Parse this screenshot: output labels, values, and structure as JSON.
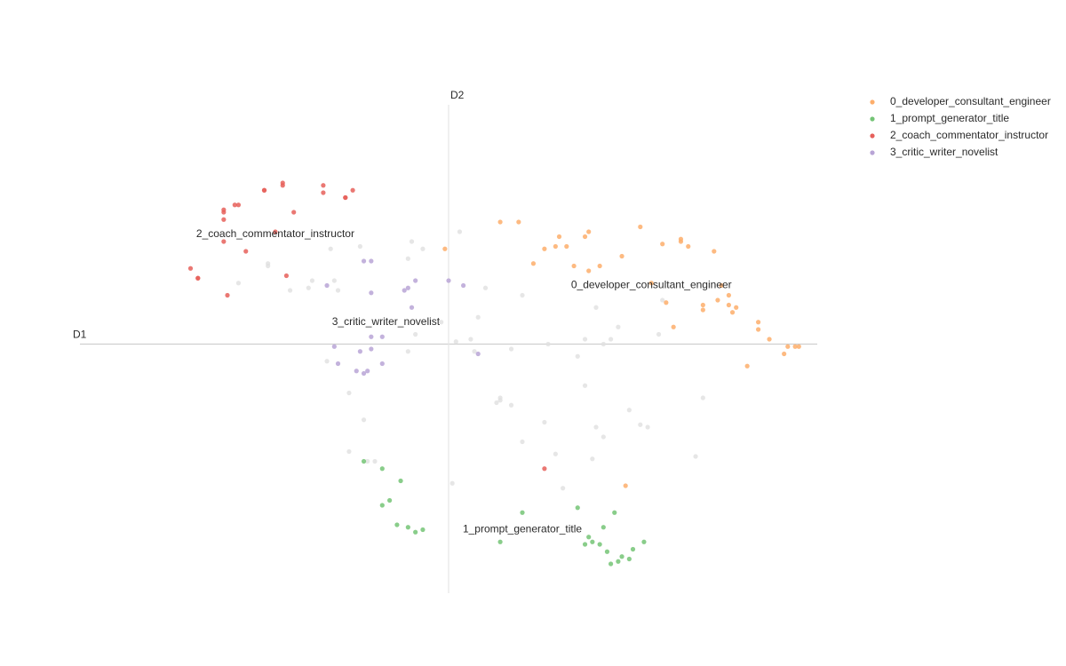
{
  "chart_data": {
    "type": "scatter",
    "x_label": "D1",
    "y_label": "D2",
    "xlim": [
      -10,
      10
    ],
    "ylim": [
      -10.2,
      9.8
    ],
    "legend": "top-right",
    "series": [
      {
        "name": "0_developer_consultant_engineer",
        "color": "#fdae6b",
        "x": [
          1.4,
          1.9,
          3.0,
          2.6,
          2.9,
          3.2,
          3.7,
          3.8,
          2.3,
          3.4,
          3.8,
          4.1,
          4.7,
          5.2,
          5.8,
          6.3,
          6.3,
          6.5,
          7.2,
          -0.1,
          5.5,
          7.4,
          7.6,
          7.3,
          5.9,
          6.9,
          7.6,
          7.8,
          6.9,
          7.7,
          6.1,
          8.4,
          8.4,
          8.7,
          9.2,
          9.4,
          9.5,
          9.1,
          8.1,
          4.8
        ],
        "values": [
          5.0,
          5.0,
          4.4,
          3.9,
          4.0,
          4.0,
          4.4,
          4.6,
          3.3,
          3.2,
          3.0,
          3.2,
          3.6,
          4.8,
          4.1,
          4.2,
          4.3,
          4.0,
          3.8,
          3.9,
          2.5,
          2.4,
          2.0,
          1.8,
          1.7,
          1.6,
          1.6,
          1.5,
          1.4,
          1.3,
          0.7,
          0.9,
          0.6,
          0.2,
          -0.1,
          -0.1,
          -0.1,
          -0.4,
          -0.9,
          -5.8
        ]
      },
      {
        "name": "1_prompt_generator_title",
        "color": "#74c476",
        "x": [
          -2.3,
          -1.8,
          -1.3,
          -1.6,
          -1.8,
          -1.4,
          -1.1,
          -0.9,
          -0.7,
          1.4,
          2.0,
          3.5,
          4.5,
          4.2,
          3.8,
          3.9,
          3.7,
          4.1,
          4.3,
          5.3,
          5.0,
          4.7,
          4.9,
          4.6,
          4.4
        ],
        "values": [
          -4.8,
          -5.1,
          -5.6,
          -6.4,
          -6.6,
          -7.4,
          -7.5,
          -7.7,
          -7.6,
          -8.1,
          -6.9,
          -6.7,
          -6.9,
          -7.5,
          -7.9,
          -8.1,
          -8.2,
          -8.2,
          -8.5,
          -8.1,
          -8.4,
          -8.7,
          -8.8,
          -8.9,
          -9.0
        ]
      },
      {
        "name": "2_coach_commentator_instructor",
        "color": "#e6605b",
        "x": [
          -4.5,
          -4.5,
          -5.0,
          -5.0,
          -3.4,
          -3.4,
          -2.6,
          -2.8,
          -2.8,
          -5.8,
          -5.7,
          -6.1,
          -6.1,
          -6.1,
          -4.2,
          -4.7,
          -6.1,
          -5.5,
          -7.0,
          -6.8,
          -6.8,
          -4.4,
          -6.0,
          2.6
        ],
        "values": [
          6.6,
          6.5,
          6.3,
          6.3,
          6.5,
          6.2,
          6.3,
          6.0,
          6.0,
          5.7,
          5.7,
          5.5,
          5.4,
          5.1,
          5.4,
          4.6,
          4.2,
          3.8,
          3.1,
          2.7,
          2.7,
          2.8,
          2.0,
          -5.1
        ]
      },
      {
        "name": "3_critic_writer_novelist",
        "color": "#b8a4d6",
        "x": [
          -2.3,
          -2.1,
          -0.9,
          -1.1,
          -1.2,
          -2.1,
          -3.3,
          0.0,
          0.4,
          -1.0,
          -2.1,
          -1.8,
          -3.1,
          -2.1,
          -2.4,
          0.8,
          -3.0,
          -1.8,
          -2.5,
          -2.3,
          -2.2
        ],
        "values": [
          3.4,
          3.4,
          2.6,
          2.3,
          2.2,
          2.1,
          2.4,
          2.6,
          2.4,
          1.5,
          0.3,
          0.3,
          -0.1,
          -0.2,
          -0.3,
          -0.4,
          -0.8,
          -0.8,
          -1.1,
          -1.2,
          -1.1
        ]
      },
      {
        "color": "#e0e0e0",
        "x": [
          -1.0,
          0.3,
          -0.7,
          -1.1,
          -3.2,
          -2.4,
          -4.9,
          -4.9,
          -5.7,
          -4.3,
          -3.7,
          -3.8,
          -3.1,
          -3.0,
          1.0,
          2.0,
          4.0,
          0.8,
          -0.9,
          -0.2,
          0.2,
          0.6,
          0.7,
          -1.1,
          1.7,
          2.7,
          3.5,
          3.7,
          4.2,
          4.4,
          4.6,
          5.7,
          5.8,
          -3.3,
          -2.7,
          -2.3,
          3.7,
          1.4,
          1.3,
          1.4,
          1.7,
          2.6,
          4.0,
          4.9,
          5.2,
          5.4,
          6.9,
          4.2,
          2.0,
          2.9,
          3.9,
          6.7,
          -2.7,
          -2.2,
          -2.0,
          0.1,
          3.1
        ],
        "values": [
          4.2,
          4.6,
          3.9,
          3.5,
          3.9,
          4.0,
          3.3,
          3.2,
          2.5,
          2.2,
          2.6,
          2.3,
          2.6,
          2.2,
          2.3,
          2.0,
          1.5,
          1.1,
          0.4,
          0.9,
          0.1,
          0.2,
          -0.3,
          -0.3,
          -0.2,
          0.0,
          -0.5,
          0.2,
          0.0,
          0.2,
          0.7,
          0.4,
          1.8,
          -0.7,
          -2.0,
          -3.1,
          -1.7,
          -2.2,
          -2.4,
          -2.3,
          -2.5,
          -3.2,
          -3.4,
          -2.7,
          -3.3,
          -3.4,
          -2.2,
          -3.8,
          -4.0,
          -4.5,
          -4.7,
          -4.6,
          -4.4,
          -4.8,
          -4.8,
          -5.7,
          -5.9
        ]
      }
    ],
    "annotations": [
      {
        "text": "2_coach_commentator_instructor",
        "x": -4.7,
        "y": 4.5
      },
      {
        "text": "0_developer_consultant_engineer",
        "x": 5.5,
        "y": 2.4
      },
      {
        "text": "3_critic_writer_novelist",
        "x": -1.7,
        "y": 0.9
      },
      {
        "text": "1_prompt_generator_title",
        "x": 2.0,
        "y": -7.6
      }
    ]
  }
}
